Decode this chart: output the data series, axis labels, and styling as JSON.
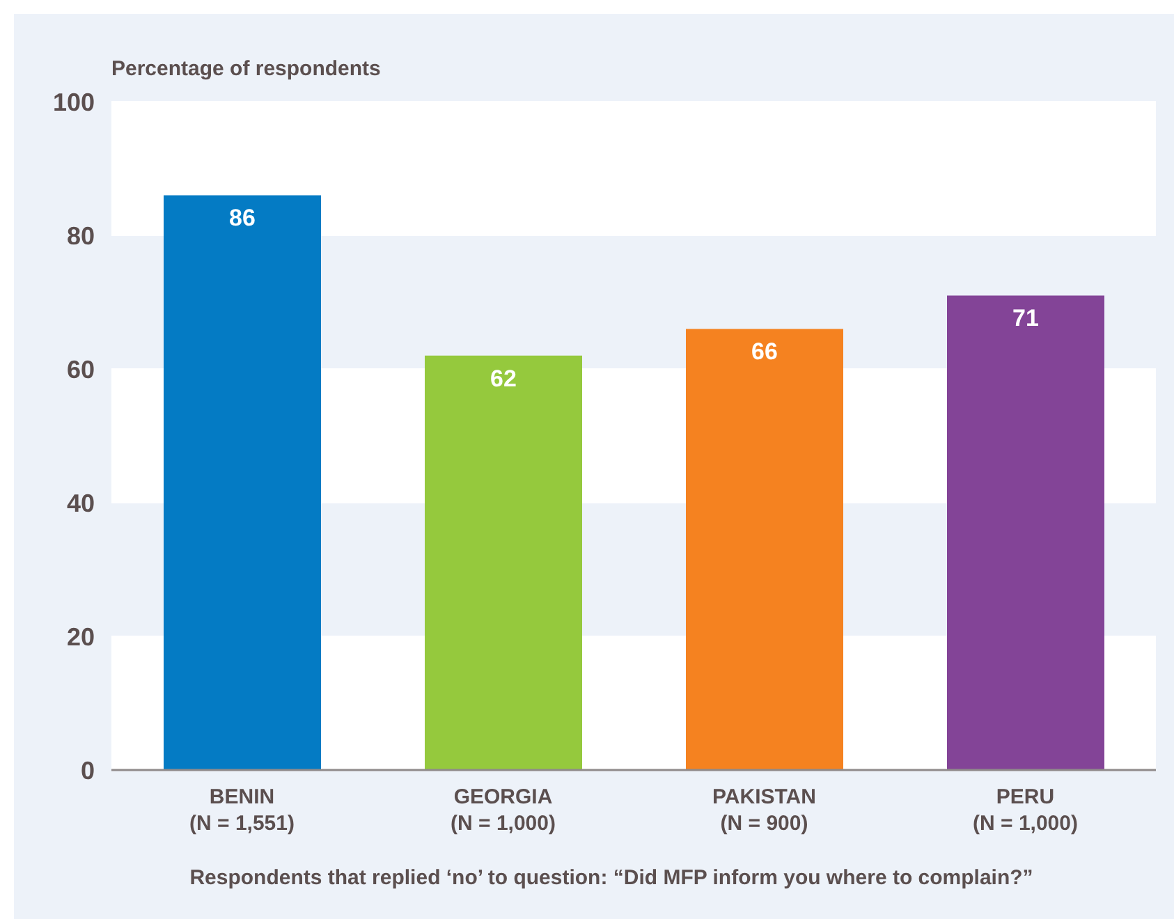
{
  "chart_data": {
    "type": "bar",
    "categories": [
      "BENIN\n(N = 1,551)",
      "GEORGIA\n(N = 1,000)",
      "PAKISTAN\n(N = 900)",
      "PERU\n(N = 1,000)"
    ],
    "values": [
      86,
      62,
      66,
      71
    ],
    "colors": [
      "#047bc4",
      "#95c93d",
      "#f58220",
      "#834497"
    ],
    "ylabel": "Percentage of respondents",
    "xlabel": "Respondents that replied ‘no’ to question: “Did MFP inform you where to complain?”",
    "ylim": [
      0,
      100
    ],
    "yticks": [
      0,
      20,
      40,
      60,
      80,
      100
    ],
    "grid": "y",
    "data_labels": true
  }
}
